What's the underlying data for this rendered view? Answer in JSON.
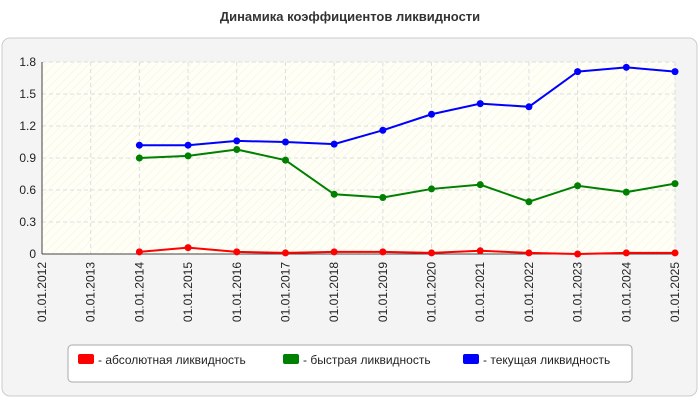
{
  "chart_data": {
    "type": "line",
    "title": "Динамика коэффициентов ликвидности",
    "categories": [
      "01.01.2012",
      "01.01.2013",
      "01.01.2014",
      "01.01.2015",
      "01.01.2016",
      "01.01.2017",
      "01.01.2018",
      "01.01.2019",
      "01.01.2020",
      "01.01.2021",
      "01.01.2022",
      "01.01.2023",
      "01.01.2024",
      "01.01.2025"
    ],
    "series": [
      {
        "name": "- абсолютная ликвидность",
        "color": "#ff0000",
        "values": [
          null,
          null,
          0.02,
          0.06,
          0.02,
          0.01,
          0.02,
          0.02,
          0.01,
          0.03,
          0.01,
          0.0,
          0.01,
          0.01
        ]
      },
      {
        "name": "- быстрая ликвидность",
        "color": "#008000",
        "values": [
          null,
          null,
          0.9,
          0.92,
          0.98,
          0.88,
          0.56,
          0.53,
          0.61,
          0.65,
          0.49,
          0.64,
          0.58,
          0.66
        ]
      },
      {
        "name": "- текущая ликвидность",
        "color": "#0000ff",
        "values": [
          null,
          null,
          1.02,
          1.02,
          1.06,
          1.05,
          1.03,
          1.16,
          1.31,
          1.41,
          1.38,
          1.71,
          1.75,
          1.71
        ]
      }
    ],
    "ylim": [
      0,
      1.8
    ],
    "yticks": [
      0,
      0.3,
      0.6,
      0.9,
      1.2,
      1.5,
      1.8
    ],
    "grid": true,
    "legend": "bottom"
  }
}
